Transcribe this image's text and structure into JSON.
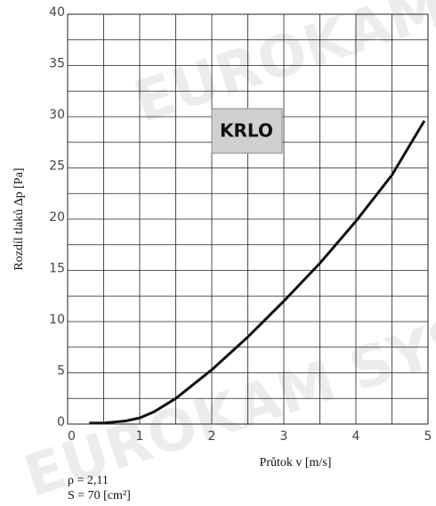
{
  "chart_data": {
    "type": "line",
    "watermark": "EUROKAM SYSTEM",
    "label_box": "KRLO",
    "xlabel": "Průtok v [m/s]",
    "ylabel": "Rozdíl tlaků Δp [Pa]",
    "annotations": [
      "ρ = 2,11",
      "S = 70 [cm²]"
    ],
    "x": [
      0.3,
      0.5,
      0.8,
      1.0,
      1.2,
      1.5,
      2.0,
      2.5,
      3.0,
      3.5,
      4.0,
      4.5,
      4.95
    ],
    "values": [
      0.1,
      0.1,
      0.3,
      0.6,
      1.2,
      2.5,
      5.3,
      8.5,
      12.0,
      15.7,
      19.8,
      24.3,
      29.6
    ],
    "color": "#111111",
    "xlim": [
      0,
      5
    ],
    "ylim": [
      0,
      40
    ],
    "xticks": [
      0,
      1,
      2,
      3,
      4,
      5
    ],
    "yticks": [
      0,
      5,
      10,
      15,
      20,
      25,
      30,
      35,
      40
    ],
    "minor_xticks": [
      0.5,
      1.5,
      2.5,
      3.5,
      4.5
    ],
    "minor_yticks": [
      2.5,
      7.5,
      12.5,
      17.5,
      22.5,
      27.5,
      32.5,
      37.5
    ],
    "grid": true
  }
}
